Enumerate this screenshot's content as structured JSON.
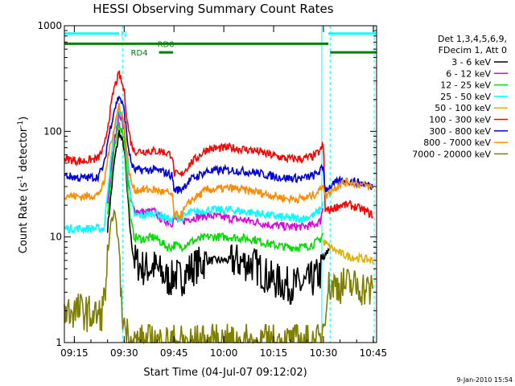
{
  "chart_data": {
    "type": "line",
    "title": "HESSI Observing Summary Count Rates",
    "xlabel": "Start Time (04-Jul-07 09:12:02)",
    "ylabel": {
      "prefix": "Count Rate (s",
      "exp1": "-1",
      "mid": " detector",
      "exp2": "-1",
      "suffix": ")"
    },
    "x_unit": "minutes after 09:12:02",
    "xlim": [
      0,
      94
    ],
    "ylim": [
      1,
      1000
    ],
    "y_scale": "log",
    "x_ticks": [
      {
        "value": 3,
        "label": "09:15"
      },
      {
        "value": 18,
        "label": "09:30"
      },
      {
        "value": 33,
        "label": "09:45"
      },
      {
        "value": 48,
        "label": "10:00"
      },
      {
        "value": 63,
        "label": "10:15"
      },
      {
        "value": 78,
        "label": "10:30"
      },
      {
        "value": 93,
        "label": "10:45"
      }
    ],
    "y_ticks": [
      {
        "value": 1,
        "label": "1"
      },
      {
        "value": 10,
        "label": "10"
      },
      {
        "value": 100,
        "label": "100"
      },
      {
        "value": 1000,
        "label": "1000"
      }
    ],
    "legend": {
      "placement": "right",
      "header": [
        "Det 1,3,4,5,6,9,",
        "FDecim 1, Att 0"
      ]
    },
    "series": [
      {
        "name": "3 - 6 keV",
        "color": "#000000",
        "points": [
          [
            13,
            12
          ],
          [
            15,
            50
          ],
          [
            16.5,
            100
          ],
          [
            18,
            70
          ],
          [
            19,
            25
          ],
          [
            20,
            10
          ],
          [
            21,
            6
          ],
          [
            24,
            5
          ],
          [
            27,
            5.2
          ],
          [
            29,
            4.6
          ],
          [
            31,
            4
          ],
          [
            32.5,
            4
          ],
          [
            33,
            4.5
          ],
          [
            35,
            4
          ],
          [
            38,
            5
          ],
          [
            43,
            6
          ],
          [
            50,
            6
          ],
          [
            57,
            5.5
          ],
          [
            62,
            4
          ],
          [
            67,
            3.5
          ],
          [
            72,
            3.5
          ],
          [
            75,
            4
          ],
          [
            77,
            4.5
          ],
          [
            78,
            6
          ],
          [
            79,
            7
          ],
          [
            80,
            8
          ]
        ]
      },
      {
        "name": "6 - 12 keV",
        "color": "#e000e0",
        "points": [
          [
            13,
            22
          ],
          [
            15,
            80
          ],
          [
            16.5,
            150
          ],
          [
            18,
            110
          ],
          [
            19,
            40
          ],
          [
            20,
            22
          ],
          [
            21,
            18
          ],
          [
            24,
            17
          ],
          [
            27,
            17.5
          ],
          [
            29,
            15
          ],
          [
            31,
            14
          ],
          [
            32.5,
            13.5
          ],
          [
            33,
            15
          ],
          [
            35,
            14
          ],
          [
            38,
            15
          ],
          [
            43,
            16
          ],
          [
            50,
            15
          ],
          [
            57,
            14
          ],
          [
            62,
            13
          ],
          [
            67,
            12.5
          ],
          [
            72,
            12.5
          ],
          [
            75,
            13
          ],
          [
            77,
            14
          ],
          [
            78,
            20
          ]
        ]
      },
      {
        "name": "12 - 25 keV",
        "color": "#00dd00",
        "points": [
          [
            13,
            17
          ],
          [
            15,
            65
          ],
          [
            16.5,
            120
          ],
          [
            18,
            90
          ],
          [
            19,
            30
          ],
          [
            20,
            14
          ],
          [
            21,
            10
          ],
          [
            24,
            9.5
          ],
          [
            27,
            10
          ],
          [
            29,
            9
          ],
          [
            31,
            8
          ],
          [
            32.5,
            8
          ],
          [
            33,
            8.5
          ],
          [
            35,
            8
          ],
          [
            38,
            9
          ],
          [
            43,
            10
          ],
          [
            50,
            10
          ],
          [
            57,
            9.5
          ],
          [
            62,
            8.5
          ],
          [
            67,
            8
          ],
          [
            72,
            8
          ],
          [
            75,
            8.5
          ],
          [
            77,
            9.5
          ],
          [
            78,
            11
          ]
        ]
      },
      {
        "name": "25 - 50 keV",
        "color": "#00ffff",
        "points": [
          [
            0,
            12
          ],
          [
            8,
            12
          ],
          [
            12,
            12
          ],
          [
            13,
            28
          ],
          [
            15,
            100
          ],
          [
            16.5,
            165
          ],
          [
            18,
            120
          ],
          [
            19,
            50
          ],
          [
            20,
            23
          ],
          [
            21,
            16
          ],
          [
            24,
            16
          ],
          [
            27,
            17
          ],
          [
            29,
            16
          ],
          [
            31,
            15
          ],
          [
            32.5,
            14
          ],
          [
            33,
            16
          ],
          [
            35,
            15
          ],
          [
            38,
            17
          ],
          [
            43,
            18
          ],
          [
            50,
            18
          ],
          [
            57,
            17
          ],
          [
            62,
            16
          ],
          [
            67,
            15
          ],
          [
            72,
            15
          ],
          [
            75,
            16
          ],
          [
            77,
            18
          ],
          [
            78,
            22
          ]
        ]
      },
      {
        "name": "50 - 100 keV",
        "color": "#e0b000",
        "points": [
          [
            78,
            9
          ],
          [
            80,
            8
          ],
          [
            83,
            7
          ],
          [
            86,
            6.5
          ],
          [
            90,
            6.2
          ],
          [
            93,
            6
          ]
        ]
      },
      {
        "name": "100 - 300 keV",
        "color": "#ff0000",
        "points": [
          [
            0,
            55
          ],
          [
            5,
            52
          ],
          [
            10,
            55
          ],
          [
            12,
            70
          ],
          [
            13,
            110
          ],
          [
            15,
            260
          ],
          [
            16.5,
            350
          ],
          [
            18,
            240
          ],
          [
            19,
            120
          ],
          [
            20,
            80
          ],
          [
            21,
            65
          ],
          [
            24,
            65
          ],
          [
            27,
            65
          ],
          [
            29,
            65
          ],
          [
            31,
            62
          ],
          [
            32.5,
            60
          ],
          [
            33,
            40
          ],
          [
            35,
            38
          ],
          [
            38,
            50
          ],
          [
            43,
            68
          ],
          [
            50,
            70
          ],
          [
            57,
            66
          ],
          [
            62,
            60
          ],
          [
            67,
            55
          ],
          [
            72,
            55
          ],
          [
            75,
            58
          ],
          [
            77,
            65
          ],
          [
            78,
            75
          ],
          [
            78.5,
            18
          ],
          [
            80,
            18
          ],
          [
            83,
            20
          ],
          [
            86,
            20
          ],
          [
            90,
            18
          ],
          [
            93,
            16
          ]
        ]
      },
      {
        "name": "300 - 800 keV",
        "color": "#0000dd",
        "points": [
          [
            0,
            38
          ],
          [
            5,
            36
          ],
          [
            10,
            37
          ],
          [
            12,
            48
          ],
          [
            13,
            80
          ],
          [
            15,
            160
          ],
          [
            16.5,
            220
          ],
          [
            18,
            160
          ],
          [
            19,
            80
          ],
          [
            20,
            52
          ],
          [
            21,
            43
          ],
          [
            24,
            43
          ],
          [
            27,
            43
          ],
          [
            29,
            42
          ],
          [
            31,
            40
          ],
          [
            32.5,
            38
          ],
          [
            33,
            28
          ],
          [
            35,
            28
          ],
          [
            38,
            35
          ],
          [
            43,
            42
          ],
          [
            50,
            43
          ],
          [
            57,
            41
          ],
          [
            62,
            38
          ],
          [
            67,
            36
          ],
          [
            72,
            36
          ],
          [
            75,
            38
          ],
          [
            77,
            42
          ],
          [
            78,
            46
          ],
          [
            78.5,
            28
          ],
          [
            80,
            30
          ],
          [
            83,
            34
          ],
          [
            86,
            34
          ],
          [
            90,
            32
          ],
          [
            93,
            30
          ]
        ]
      },
      {
        "name": "800 - 7000 keV",
        "color": "#ff8c00",
        "points": [
          [
            0,
            25
          ],
          [
            5,
            24
          ],
          [
            10,
            25
          ],
          [
            12,
            32
          ],
          [
            13,
            55
          ],
          [
            15,
            110
          ],
          [
            16.5,
            180
          ],
          [
            18,
            120
          ],
          [
            19,
            55
          ],
          [
            20,
            34
          ],
          [
            21,
            28
          ],
          [
            24,
            28
          ],
          [
            27,
            28
          ],
          [
            29,
            27
          ],
          [
            31,
            26
          ],
          [
            32.5,
            25
          ],
          [
            33,
            16
          ],
          [
            35,
            16
          ],
          [
            38,
            22
          ],
          [
            43,
            28
          ],
          [
            50,
            29
          ],
          [
            57,
            27
          ],
          [
            62,
            25
          ],
          [
            67,
            23
          ],
          [
            72,
            23
          ],
          [
            75,
            25
          ],
          [
            77,
            28
          ],
          [
            78,
            33
          ],
          [
            78.5,
            24
          ],
          [
            80,
            27
          ],
          [
            83,
            32
          ],
          [
            86,
            33
          ],
          [
            90,
            31
          ],
          [
            93,
            29
          ]
        ]
      },
      {
        "name": "7000 - 20000 keV",
        "color": "#808000",
        "points": [
          [
            0,
            2
          ],
          [
            5,
            2
          ],
          [
            9,
            1.8
          ],
          [
            11,
            1.8
          ],
          [
            12,
            2.5
          ],
          [
            13,
            6
          ],
          [
            14,
            13
          ],
          [
            15,
            18
          ],
          [
            16.5,
            8
          ],
          [
            17,
            2.5
          ],
          [
            18,
            1.5
          ],
          [
            19,
            1.2
          ],
          [
            20,
            1
          ],
          [
            77,
            1
          ],
          [
            78,
            1.5
          ],
          [
            79,
            3
          ],
          [
            80,
            3.5
          ],
          [
            83,
            3.5
          ],
          [
            86,
            3.5
          ],
          [
            90,
            3.3
          ],
          [
            93,
            3
          ]
        ]
      }
    ],
    "flag_bars": [
      {
        "label": "N",
        "color": "#00ffff",
        "segments": [
          [
            0,
            16.5
          ],
          [
            79.5,
            94
          ]
        ],
        "level": 842,
        "label_at": 17
      },
      {
        "label": "RD0",
        "color": "#008000",
        "segments": [
          [
            0,
            79.5
          ]
        ],
        "level": 675,
        "label_at": 28
      },
      {
        "label": "RD4",
        "color": "#008000",
        "segments": [
          [
            28.5,
            32.7
          ]
        ],
        "level": 560,
        "label_at": 20
      },
      {
        "label": "",
        "color": "#008000",
        "segments": [
          [
            80,
            94
          ]
        ],
        "level": 560,
        "label_at": 0
      }
    ],
    "vlines": [
      {
        "x": 0,
        "color": "#00ffff",
        "style": "solid"
      },
      {
        "x": 17.5,
        "color": "#00ffff",
        "style": "dashed"
      },
      {
        "x": 77.5,
        "color": "#00ffff",
        "style": "solid"
      },
      {
        "x": 80,
        "color": "#00ffff",
        "style": "dashed"
      },
      {
        "x": 93.3,
        "color": "#00ffff",
        "style": "dashed"
      }
    ]
  },
  "footer_stamp": "9-Jan-2010 15:54"
}
